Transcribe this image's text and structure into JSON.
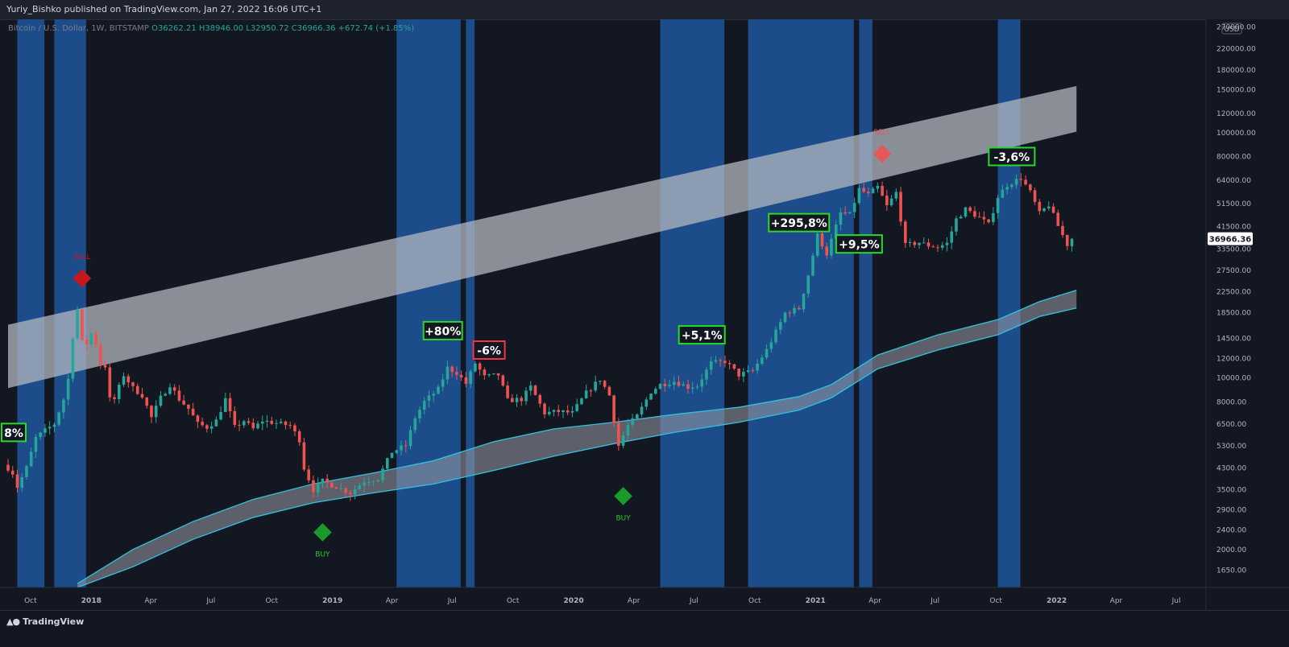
{
  "header": {
    "publisher_line": "Yuriy_Bishko published on TradingView.com, Jan 27, 2022 16:06 UTC+1"
  },
  "legend": {
    "symbol": "Bitcoin / U.S. Dollar, 1W, BITSTAMP",
    "open": "O36262.21",
    "high": "H38946.00",
    "low": "L32950.72",
    "close": "C36966.36",
    "change": "+672.74 (+1.85%)"
  },
  "footer": {
    "brand": "TradingView"
  },
  "colors": {
    "background": "#131722",
    "up_candle": "#26a69a",
    "down_candle": "#ef5350",
    "highlight_band": "#1c4d8a",
    "channel_fill": "#b8bcc4",
    "lower_band_line": "#2ec4e0",
    "label_green": "#29d829",
    "label_red": "#f23645"
  },
  "chart_data": {
    "type": "candlestick",
    "title": "",
    "symbol": "Bitcoin / U.S. Dollar",
    "interval": "1W",
    "exchange": "BITSTAMP",
    "y_scale": "log",
    "ylim": [
      1400,
      290000
    ],
    "currency_label": "USD",
    "last_price_label": "36966.36",
    "y_ticks": [
      "270000.00",
      "220000.00",
      "180000.00",
      "150000.00",
      "120000.00",
      "100000.00",
      "80000.00",
      "64000.00",
      "51500.00",
      "41500.00",
      "33500.00",
      "27500.00",
      "22500.00",
      "18500.00",
      "14500.00",
      "12000.00",
      "10000.00",
      "8000.00",
      "6500.00",
      "5300.00",
      "4300.00",
      "3500.00",
      "2900.00",
      "2400.00",
      "2000.00",
      "1650.00"
    ],
    "x_ticks": [
      "Oct",
      "2018",
      "Apr",
      "Jul",
      "Oct",
      "2019",
      "Apr",
      "Jul",
      "Oct",
      "2020",
      "Apr",
      "Jul",
      "Oct",
      "2021",
      "Apr",
      "Jul",
      "Oct",
      "2022",
      "Apr",
      "Jul"
    ],
    "x_range": [
      "2017-08-28",
      "2022-08-15"
    ],
    "price_path_weekly_close": [
      [
        "2017-08-28",
        4300
      ],
      [
        "2017-09-04",
        4100
      ],
      [
        "2017-09-11",
        3600
      ],
      [
        "2017-09-25",
        4300
      ],
      [
        "2017-10-09",
        5700
      ],
      [
        "2017-10-23",
        6100
      ],
      [
        "2017-11-06",
        6500
      ],
      [
        "2017-11-20",
        8200
      ],
      [
        "2017-11-27",
        9900
      ],
      [
        "2017-12-04",
        14800
      ],
      [
        "2017-12-11",
        19000
      ],
      [
        "2017-12-18",
        14000
      ],
      [
        "2017-12-25",
        13800
      ],
      [
        "2018-01-01",
        15200
      ],
      [
        "2018-01-08",
        13800
      ],
      [
        "2018-01-15",
        11400
      ],
      [
        "2018-01-22",
        11200
      ],
      [
        "2018-01-29",
        8200
      ],
      [
        "2018-02-05",
        8200
      ],
      [
        "2018-02-19",
        10300
      ],
      [
        "2018-03-05",
        9100
      ],
      [
        "2018-03-19",
        8500
      ],
      [
        "2018-04-02",
        6900
      ],
      [
        "2018-04-16",
        8300
      ],
      [
        "2018-04-30",
        9400
      ],
      [
        "2018-05-14",
        8200
      ],
      [
        "2018-05-28",
        7500
      ],
      [
        "2018-06-11",
        6500
      ],
      [
        "2018-06-25",
        6300
      ],
      [
        "2018-07-09",
        6700
      ],
      [
        "2018-07-23",
        8200
      ],
      [
        "2018-08-06",
        6300
      ],
      [
        "2018-08-20",
        6700
      ],
      [
        "2018-09-03",
        6200
      ],
      [
        "2018-09-17",
        6700
      ],
      [
        "2018-10-01",
        6600
      ],
      [
        "2018-10-15",
        6500
      ],
      [
        "2018-10-29",
        6400
      ],
      [
        "2018-11-12",
        5600
      ],
      [
        "2018-11-19",
        4300
      ],
      [
        "2018-12-03",
        3500
      ],
      [
        "2018-12-17",
        3800
      ],
      [
        "2019-01-07",
        3600
      ],
      [
        "2019-01-28",
        3400
      ],
      [
        "2019-02-18",
        3800
      ],
      [
        "2019-03-11",
        3900
      ],
      [
        "2019-04-01",
        5000
      ],
      [
        "2019-04-22",
        5300
      ],
      [
        "2019-05-06",
        6900
      ],
      [
        "2019-05-20",
        8000
      ],
      [
        "2019-06-10",
        9000
      ],
      [
        "2019-06-24",
        11000
      ],
      [
        "2019-07-08",
        10500
      ],
      [
        "2019-07-22",
        9500
      ],
      [
        "2019-08-05",
        11500
      ],
      [
        "2019-08-19",
        10100
      ],
      [
        "2019-09-09",
        10300
      ],
      [
        "2019-09-23",
        8100
      ],
      [
        "2019-10-14",
        8200
      ],
      [
        "2019-10-28",
        9200
      ],
      [
        "2019-11-18",
        7200
      ],
      [
        "2019-12-09",
        7300
      ],
      [
        "2019-12-30",
        7200
      ],
      [
        "2020-01-20",
        8700
      ],
      [
        "2020-02-10",
        9900
      ],
      [
        "2020-02-24",
        8500
      ],
      [
        "2020-03-09",
        5300
      ],
      [
        "2020-03-23",
        6400
      ],
      [
        "2020-04-06",
        7000
      ],
      [
        "2020-04-27",
        8800
      ],
      [
        "2020-05-11",
        9400
      ],
      [
        "2020-06-01",
        9700
      ],
      [
        "2020-06-22",
        9200
      ],
      [
        "2020-07-06",
        9300
      ],
      [
        "2020-07-27",
        11500
      ],
      [
        "2020-08-17",
        11700
      ],
      [
        "2020-09-07",
        10300
      ],
      [
        "2020-09-28",
        10700
      ],
      [
        "2020-10-19",
        13000
      ],
      [
        "2020-11-02",
        15400
      ],
      [
        "2020-11-16",
        18400
      ],
      [
        "2020-12-07",
        19200
      ],
      [
        "2020-12-21",
        26300
      ],
      [
        "2021-01-04",
        38200
      ],
      [
        "2021-01-18",
        32100
      ],
      [
        "2021-02-08",
        47100
      ],
      [
        "2021-02-22",
        46300
      ],
      [
        "2021-03-08",
        58900
      ],
      [
        "2021-03-22",
        55800
      ],
      [
        "2021-04-05",
        60000
      ],
      [
        "2021-04-19",
        50100
      ],
      [
        "2021-05-03",
        57000
      ],
      [
        "2021-05-17",
        34700
      ],
      [
        "2021-06-07",
        35700
      ],
      [
        "2021-06-21",
        34700
      ],
      [
        "2021-07-05",
        34200
      ],
      [
        "2021-07-19",
        35400
      ],
      [
        "2021-08-02",
        44400
      ],
      [
        "2021-08-16",
        48800
      ],
      [
        "2021-09-06",
        45100
      ],
      [
        "2021-09-20",
        42200
      ],
      [
        "2021-10-04",
        54900
      ],
      [
        "2021-10-18",
        61300
      ],
      [
        "2021-11-08",
        65400
      ],
      [
        "2021-11-22",
        57200
      ],
      [
        "2021-12-06",
        46800
      ],
      [
        "2021-12-20",
        50800
      ],
      [
        "2022-01-03",
        41700
      ],
      [
        "2022-01-17",
        35000
      ],
      [
        "2022-01-24",
        36966.36
      ]
    ],
    "highlight_periods": [
      [
        "2017-09-11",
        "2017-10-22"
      ],
      [
        "2017-11-06",
        "2017-12-24"
      ],
      [
        "2019-04-08",
        "2019-07-14"
      ],
      [
        "2019-07-22",
        "2019-08-04"
      ],
      [
        "2020-05-11",
        "2020-08-16"
      ],
      [
        "2020-09-21",
        "2021-02-28"
      ],
      [
        "2021-03-08",
        "2021-03-28"
      ],
      [
        "2021-10-04",
        "2021-11-07"
      ]
    ],
    "upper_channel": {
      "upper": [
        [
          "2017-08-28",
          16500
        ],
        [
          "2022-01-31",
          155000
        ]
      ],
      "lower": [
        [
          "2017-08-28",
          9100
        ],
        [
          "2022-01-31",
          101000
        ]
      ]
    },
    "lower_band_upper": [
      [
        "2017-12-11",
        1450
      ],
      [
        "2018-03-05",
        2000
      ],
      [
        "2018-06-04",
        2600
      ],
      [
        "2018-09-03",
        3200
      ],
      [
        "2018-12-03",
        3700
      ],
      [
        "2019-03-04",
        4100
      ],
      [
        "2019-06-03",
        4600
      ],
      [
        "2019-09-02",
        5500
      ],
      [
        "2019-12-02",
        6200
      ],
      [
        "2020-03-02",
        6600
      ],
      [
        "2020-06-01",
        7100
      ],
      [
        "2020-09-07",
        7600
      ],
      [
        "2020-12-07",
        8400
      ],
      [
        "2021-01-25",
        9400
      ],
      [
        "2021-04-05",
        12400
      ],
      [
        "2021-07-05",
        15000
      ],
      [
        "2021-10-04",
        17300
      ],
      [
        "2021-12-06",
        20500
      ],
      [
        "2022-01-31",
        22800
      ]
    ],
    "lower_band_lower": [
      [
        "2017-12-11",
        1400
      ],
      [
        "2018-03-05",
        1700
      ],
      [
        "2018-06-04",
        2200
      ],
      [
        "2018-09-03",
        2700
      ],
      [
        "2018-12-03",
        3100
      ],
      [
        "2019-03-04",
        3400
      ],
      [
        "2019-06-03",
        3700
      ],
      [
        "2019-09-02",
        4200
      ],
      [
        "2019-12-02",
        4800
      ],
      [
        "2020-03-02",
        5400
      ],
      [
        "2020-06-01",
        6000
      ],
      [
        "2020-09-07",
        6600
      ],
      [
        "2020-12-07",
        7400
      ],
      [
        "2021-01-25",
        8300
      ],
      [
        "2021-04-05",
        10900
      ],
      [
        "2021-07-05",
        13000
      ],
      [
        "2021-10-04",
        15000
      ],
      [
        "2021-12-06",
        17800
      ],
      [
        "2022-01-31",
        19300
      ]
    ],
    "annotations": [
      {
        "text": "8%",
        "date": "2017-08-30",
        "price": 6000,
        "color": "green"
      },
      {
        "text": "+80%",
        "date": "2019-06-17",
        "price": 15600,
        "color": "green"
      },
      {
        "text": "-6%",
        "date": "2019-08-26",
        "price": 13000,
        "color": "red"
      },
      {
        "text": "+5,1%",
        "date": "2020-07-13",
        "price": 15000,
        "color": "green"
      },
      {
        "text": "+295,8%",
        "date": "2020-12-07",
        "price": 43000,
        "color": "green"
      },
      {
        "text": "+9,5%",
        "date": "2021-03-08",
        "price": 35200,
        "color": "green"
      },
      {
        "text": "-3,6%",
        "date": "2021-10-25",
        "price": 80000,
        "color": "green"
      }
    ],
    "signals": [
      {
        "type": "SELL",
        "date": "2017-12-18",
        "price": 25500,
        "color": "#c8161d"
      },
      {
        "type": "SELL",
        "date": "2021-04-12",
        "price": 82000,
        "color": "#e5575a"
      },
      {
        "type": "BUY",
        "date": "2018-12-17",
        "price": 2350,
        "color": "#1a9a2a"
      },
      {
        "type": "BUY",
        "date": "2020-03-16",
        "price": 3300,
        "color": "#1a9a2a"
      }
    ]
  }
}
